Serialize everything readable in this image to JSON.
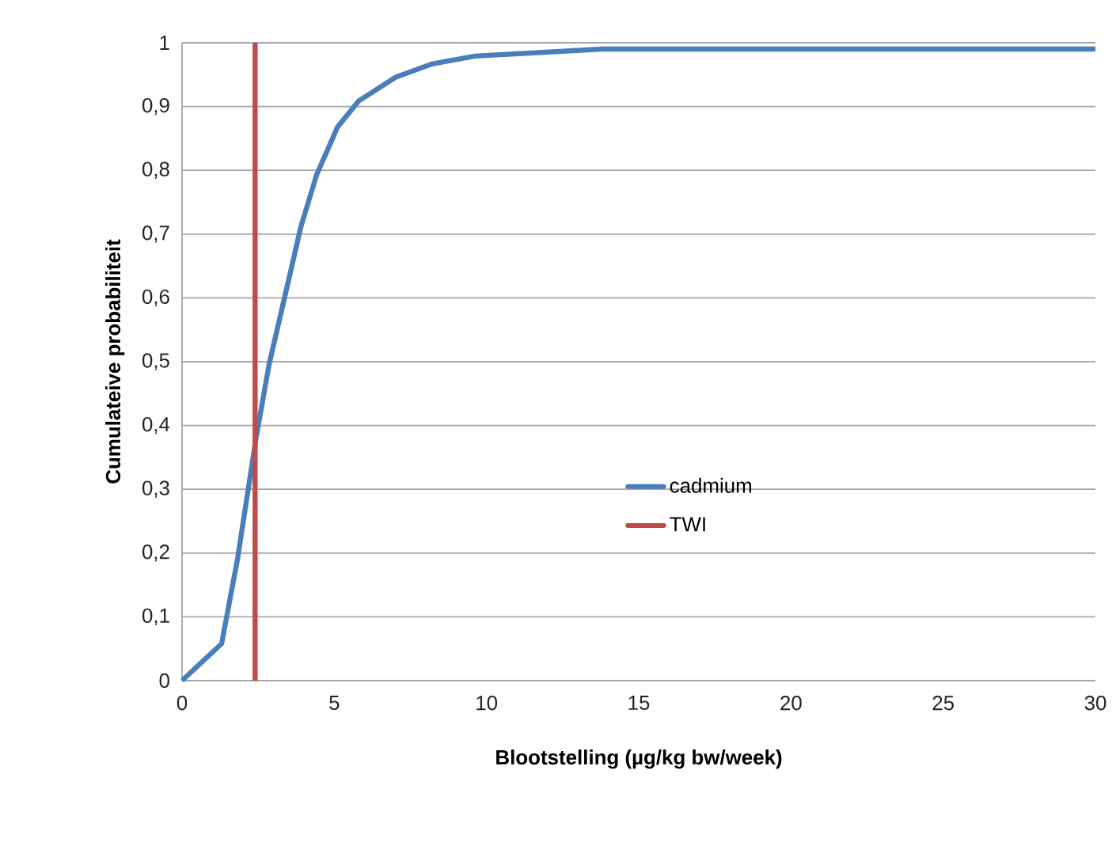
{
  "chart_data": {
    "type": "line",
    "xlabel": "Blootstelling (µg/kg bw/week)",
    "ylabel": "Cumulateive probabiliteit",
    "xlim": [
      0,
      30
    ],
    "xticks": [
      0,
      5,
      10,
      15,
      20,
      25,
      30
    ],
    "ylim": [
      0,
      1
    ],
    "yticks": [
      0,
      {
        "value": 0.1,
        "label": "0,1"
      },
      {
        "value": 0.2,
        "label": "0,2"
      },
      {
        "value": 0.3,
        "label": "0,3"
      },
      {
        "value": 0.4,
        "label": "0,4"
      },
      {
        "value": 0.5,
        "label": "0,5"
      },
      {
        "value": 0.6,
        "label": "0,6"
      },
      {
        "value": 0.7,
        "label": "0,7"
      },
      {
        "value": 0.8,
        "label": "0,8"
      },
      {
        "value": 0.9,
        "label": "0,9"
      },
      1
    ],
    "grid": "y",
    "legend": "right",
    "marker": "none",
    "line_style": "solid",
    "series": [
      {
        "name": "cadmium",
        "color": "#4a7ebb",
        "x": [
          0,
          1.3,
          1.82,
          2.43,
          2.86,
          3.38,
          3.9,
          4.42,
          5.11,
          5.81,
          7.02,
          8.23,
          9.62,
          13.8,
          19,
          30
        ],
        "values": [
          0,
          0.058,
          0.19,
          0.38,
          0.496,
          0.603,
          0.711,
          0.793,
          0.868,
          0.909,
          0.946,
          0.967,
          0.979,
          0.99,
          0.99,
          0.99
        ]
      },
      {
        "name": "TWI",
        "color": "#be4b48",
        "x": [
          2.4,
          2.4
        ],
        "values": [
          0,
          1
        ]
      }
    ]
  }
}
